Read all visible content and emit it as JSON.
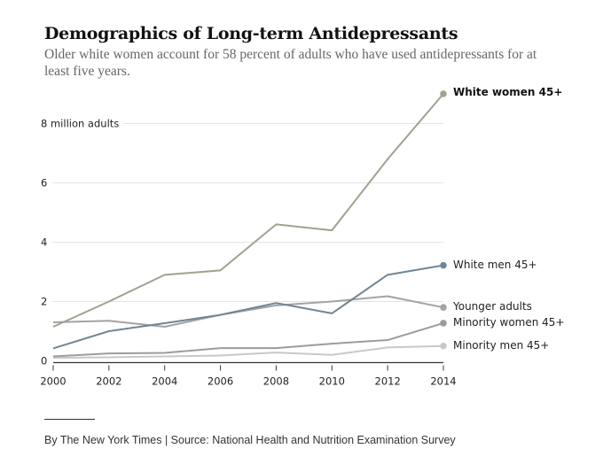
{
  "header": {
    "title": "Demographics of Long-term Antidepressants",
    "subtitle": "Older white women account for 58 percent of adults who have used antidepressants for at least five years."
  },
  "footer": {
    "credit": "By The New York Times | Source: National Health and Nutrition Examination Survey"
  },
  "chart_data": {
    "type": "line",
    "title": "Demographics of Long-term Antidepressants",
    "xlabel": "",
    "ylabel": "million adults",
    "x": [
      2000,
      2002,
      2004,
      2006,
      2008,
      2010,
      2012,
      2014
    ],
    "x_tick_labels": [
      "2000",
      "2002",
      "2004",
      "2006",
      "2008",
      "2010",
      "2012",
      "2014"
    ],
    "y_ticks": [
      0,
      2,
      4,
      6,
      8
    ],
    "y_tick_labels": [
      "0",
      "2",
      "4",
      "6",
      "8 million adults"
    ],
    "ylim": [
      0,
      9
    ],
    "xlim": [
      2000,
      2014
    ],
    "grid": true,
    "legend": "direct labels at line ends (right)",
    "series": [
      {
        "name": "White women 45+",
        "color": "#9aa58f",
        "bold_label": true,
        "values": [
          1.15,
          2.0,
          2.9,
          3.05,
          4.6,
          4.4,
          6.8,
          9.0
        ]
      },
      {
        "name": "White men 45+",
        "color": "#718593",
        "bold_label": false,
        "values": [
          0.42,
          1.0,
          1.27,
          1.55,
          1.95,
          1.6,
          2.9,
          3.22
        ]
      },
      {
        "name": "Younger adults",
        "color": "#a3a3a3",
        "bold_label": false,
        "values": [
          1.3,
          1.35,
          1.15,
          1.55,
          1.87,
          2.0,
          2.18,
          1.8
        ]
      },
      {
        "name": "Minority women 45+",
        "color": "#9c9c9c",
        "bold_label": false,
        "values": [
          0.15,
          0.25,
          0.27,
          0.43,
          0.43,
          0.58,
          0.7,
          1.27
        ]
      },
      {
        "name": "Minority men 45+",
        "color": "#c8c8c4",
        "bold_label": false,
        "values": [
          0.1,
          0.12,
          0.15,
          0.18,
          0.28,
          0.2,
          0.45,
          0.5
        ]
      }
    ]
  }
}
